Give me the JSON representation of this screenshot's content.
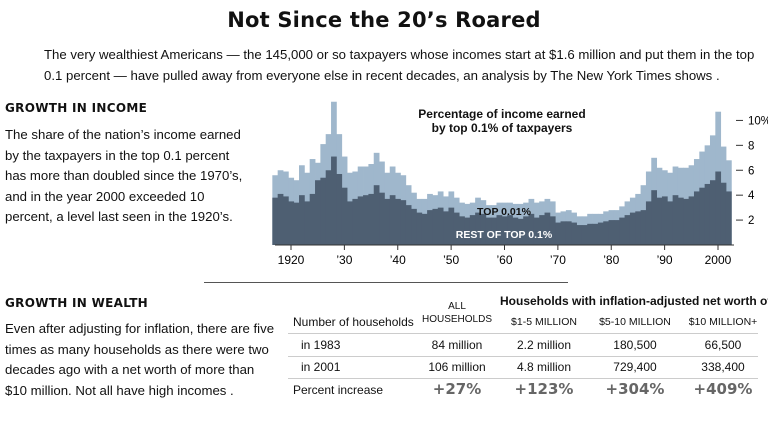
{
  "title": "Not Since the 20’s Roared",
  "intro": "The very wealthiest Americans — the 145,000 or so taxpayers whose incomes start at $1.6 million and put them in the top 0.1 percent — have pulled away from everyone else in recent decades, an analysis by The New York Times shows .",
  "income": {
    "heading": "GROWTH IN INCOME",
    "text": "The share of the nation’s income earned by the taxpayers in the top 0.1 percent has more than doubled since the 1970’s, and in the year 2000 exceeded 10 percent, a level last seen in the 1920’s."
  },
  "wealth": {
    "heading": "GROWTH IN WEALTH",
    "text": "Even after adjusting for inflation, there are five times as many households as there were two decades ago with a net worth of more than $10 million. Not all have high incomes .",
    "table_title": "Households with inflation-adjusted net worth of:",
    "col_all": "ALL HOUSEHOLDS",
    "col_header_label": "Number of households",
    "columns": [
      "$1-5 MILLION",
      "$5-10 MILLION",
      "$10 MILLION+"
    ],
    "rows": [
      {
        "label": "in 1983",
        "values": [
          "84 million",
          "2.2 million",
          "180,500",
          "66,500"
        ]
      },
      {
        "label": "in 2001",
        "values": [
          "106 million",
          "4.8 million",
          "729,400",
          "338,400"
        ]
      }
    ],
    "increase": {
      "label": "Percent increase",
      "values": [
        "+27%",
        "+123%",
        "+304%",
        "+409%"
      ]
    }
  },
  "chart_data": {
    "type": "area",
    "title": "Percentage of income earned by top 0.1% of taxpayers",
    "title_lines": [
      "Percentage of income earned",
      "by top 0.1% of taxpayers"
    ],
    "x_ticks": [
      "1920",
      "’30",
      "’40",
      "’50",
      "’60",
      "’70",
      "’80",
      "’90",
      "2000"
    ],
    "x_tick_values": [
      1920,
      1930,
      1940,
      1950,
      1960,
      1970,
      1980,
      1990,
      2000
    ],
    "y_ticks": [
      "2",
      "4",
      "6",
      "8",
      "10%"
    ],
    "y_tick_values": [
      2,
      4,
      6,
      8,
      10
    ],
    "xlim": [
      1917,
      2003
    ],
    "ylim": [
      0,
      11.8
    ],
    "colors": {
      "total": "#9fb7cc",
      "top001": "#4e5f72",
      "axis": "#333333"
    },
    "series": [
      {
        "name": "TOP 0.01%",
        "x": [
          1917,
          1918,
          1919,
          1920,
          1921,
          1922,
          1923,
          1924,
          1925,
          1926,
          1927,
          1928,
          1929,
          1930,
          1931,
          1932,
          1933,
          1934,
          1935,
          1936,
          1937,
          1938,
          1939,
          1940,
          1941,
          1942,
          1943,
          1944,
          1945,
          1946,
          1947,
          1948,
          1949,
          1950,
          1951,
          1952,
          1953,
          1954,
          1955,
          1956,
          1957,
          1958,
          1959,
          1960,
          1961,
          1962,
          1963,
          1964,
          1965,
          1966,
          1967,
          1968,
          1969,
          1970,
          1971,
          1972,
          1973,
          1974,
          1975,
          1976,
          1977,
          1978,
          1979,
          1980,
          1981,
          1982,
          1983,
          1984,
          1985,
          1986,
          1987,
          1988,
          1989,
          1990,
          1991,
          1992,
          1993,
          1994,
          1995,
          1996,
          1997,
          1998,
          1999,
          2000,
          2001,
          2002
        ],
        "values": [
          3.8,
          4.1,
          3.9,
          3.5,
          3.4,
          4.0,
          3.5,
          4.1,
          5.2,
          5.4,
          6.0,
          7.1,
          5.7,
          4.6,
          3.5,
          3.7,
          3.9,
          4.0,
          4.1,
          4.8,
          4.2,
          3.7,
          4.0,
          3.7,
          3.6,
          3.2,
          2.9,
          2.6,
          2.5,
          2.8,
          2.9,
          3.0,
          2.7,
          3.0,
          2.6,
          2.3,
          2.2,
          2.4,
          2.6,
          2.5,
          2.2,
          2.2,
          2.4,
          2.3,
          2.4,
          2.2,
          2.1,
          2.3,
          2.5,
          2.2,
          2.4,
          2.6,
          2.3,
          1.8,
          1.9,
          1.9,
          1.8,
          1.6,
          1.6,
          1.7,
          1.7,
          1.8,
          1.9,
          2.0,
          2.0,
          2.2,
          2.4,
          2.6,
          2.7,
          2.8,
          3.5,
          4.4,
          3.8,
          3.9,
          3.5,
          4.0,
          3.8,
          3.7,
          3.9,
          4.3,
          4.6,
          4.9,
          5.2,
          5.9,
          5.0,
          4.3
        ]
      },
      {
        "name": "REST OF TOP 0.1%",
        "x": [
          1917,
          1918,
          1919,
          1920,
          1921,
          1922,
          1923,
          1924,
          1925,
          1926,
          1927,
          1928,
          1929,
          1930,
          1931,
          1932,
          1933,
          1934,
          1935,
          1936,
          1937,
          1938,
          1939,
          1940,
          1941,
          1942,
          1943,
          1944,
          1945,
          1946,
          1947,
          1948,
          1949,
          1950,
          1951,
          1952,
          1953,
          1954,
          1955,
          1956,
          1957,
          1958,
          1959,
          1960,
          1961,
          1962,
          1963,
          1964,
          1965,
          1966,
          1967,
          1968,
          1969,
          1970,
          1971,
          1972,
          1973,
          1974,
          1975,
          1976,
          1977,
          1978,
          1979,
          1980,
          1981,
          1982,
          1983,
          1984,
          1985,
          1986,
          1987,
          1988,
          1989,
          1990,
          1991,
          1992,
          1993,
          1994,
          1995,
          1996,
          1997,
          1998,
          1999,
          2000,
          2001,
          2002
        ],
        "values": [
          1.8,
          1.9,
          2.0,
          1.9,
          1.8,
          2.4,
          2.3,
          2.8,
          1.4,
          2.7,
          2.9,
          4.4,
          3.2,
          2.5,
          2.3,
          2.2,
          2.4,
          2.3,
          2.4,
          2.6,
          2.5,
          2.1,
          2.3,
          2.1,
          2.0,
          1.6,
          1.3,
          1.1,
          1.2,
          1.3,
          1.1,
          1.3,
          1.2,
          1.3,
          1.2,
          1.1,
          1.1,
          1.0,
          1.2,
          1.1,
          1.0,
          1.0,
          1.0,
          1.1,
          1.0,
          1.1,
          1.2,
          1.1,
          1.2,
          1.2,
          1.1,
          1.1,
          1.2,
          0.8,
          0.8,
          0.9,
          0.8,
          0.7,
          0.7,
          0.8,
          0.8,
          0.7,
          0.8,
          0.8,
          0.8,
          0.9,
          1.1,
          1.2,
          1.4,
          2.0,
          2.4,
          2.6,
          2.4,
          2.1,
          2.3,
          2.3,
          2.4,
          2.5,
          2.5,
          2.6,
          2.9,
          3.1,
          3.6,
          4.8,
          2.9,
          2.5
        ]
      }
    ],
    "labels": [
      "TOP 0.01%",
      "REST OF TOP 0.1%"
    ],
    "grid": false,
    "y_axis_side": "right"
  }
}
